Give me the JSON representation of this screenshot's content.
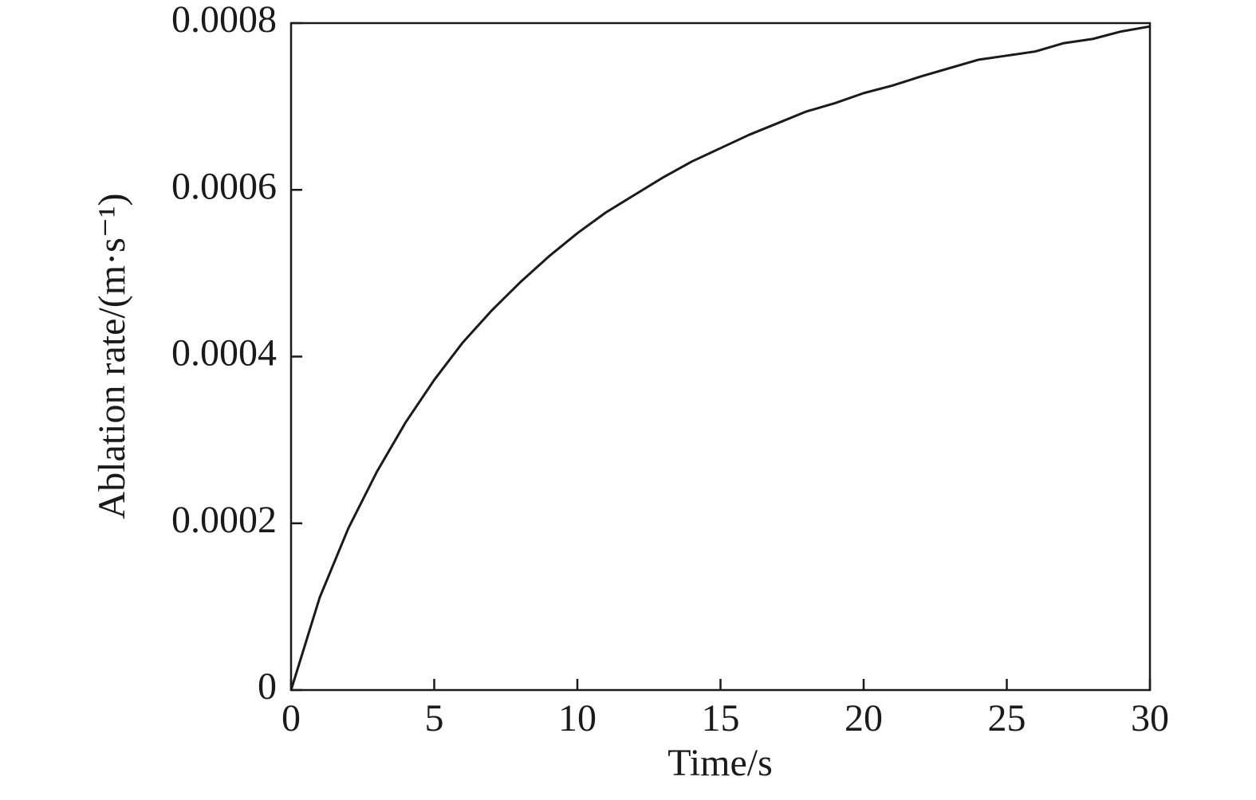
{
  "chart_data": {
    "type": "line",
    "x_label": "Time/s",
    "y_label": "Ablation rate/(m·s⁻¹)",
    "x": [
      0,
      1,
      2,
      3,
      4,
      5,
      6,
      7,
      8,
      9,
      10,
      11,
      12,
      13,
      14,
      15,
      16,
      17,
      18,
      19,
      20,
      21,
      22,
      23,
      24,
      25,
      26,
      27,
      28,
      29,
      30
    ],
    "series": [
      {
        "color": "#1a1a1a",
        "values": [
          0,
          0.000111,
          0.000194,
          0.000262,
          0.000321,
          0.000372,
          0.000417,
          0.000455,
          0.000489,
          0.00052,
          0.000548,
          0.000573,
          0.000594,
          0.000615,
          0.000634,
          0.00065,
          0.000666,
          0.00068,
          0.000694,
          0.000704,
          0.000716,
          0.000725,
          0.000736,
          0.000746,
          0.000756,
          0.000761,
          0.000766,
          0.000776,
          0.000781,
          0.00079,
          0.000796
        ]
      }
    ],
    "xlim": [
      0,
      30
    ],
    "xticks": [
      0,
      5,
      10,
      15,
      20,
      25,
      30
    ],
    "ylim": [
      0,
      0.0008
    ],
    "yticks": [
      0,
      0.0002,
      0.0004,
      0.0006,
      0.0008
    ],
    "grid": false
  }
}
